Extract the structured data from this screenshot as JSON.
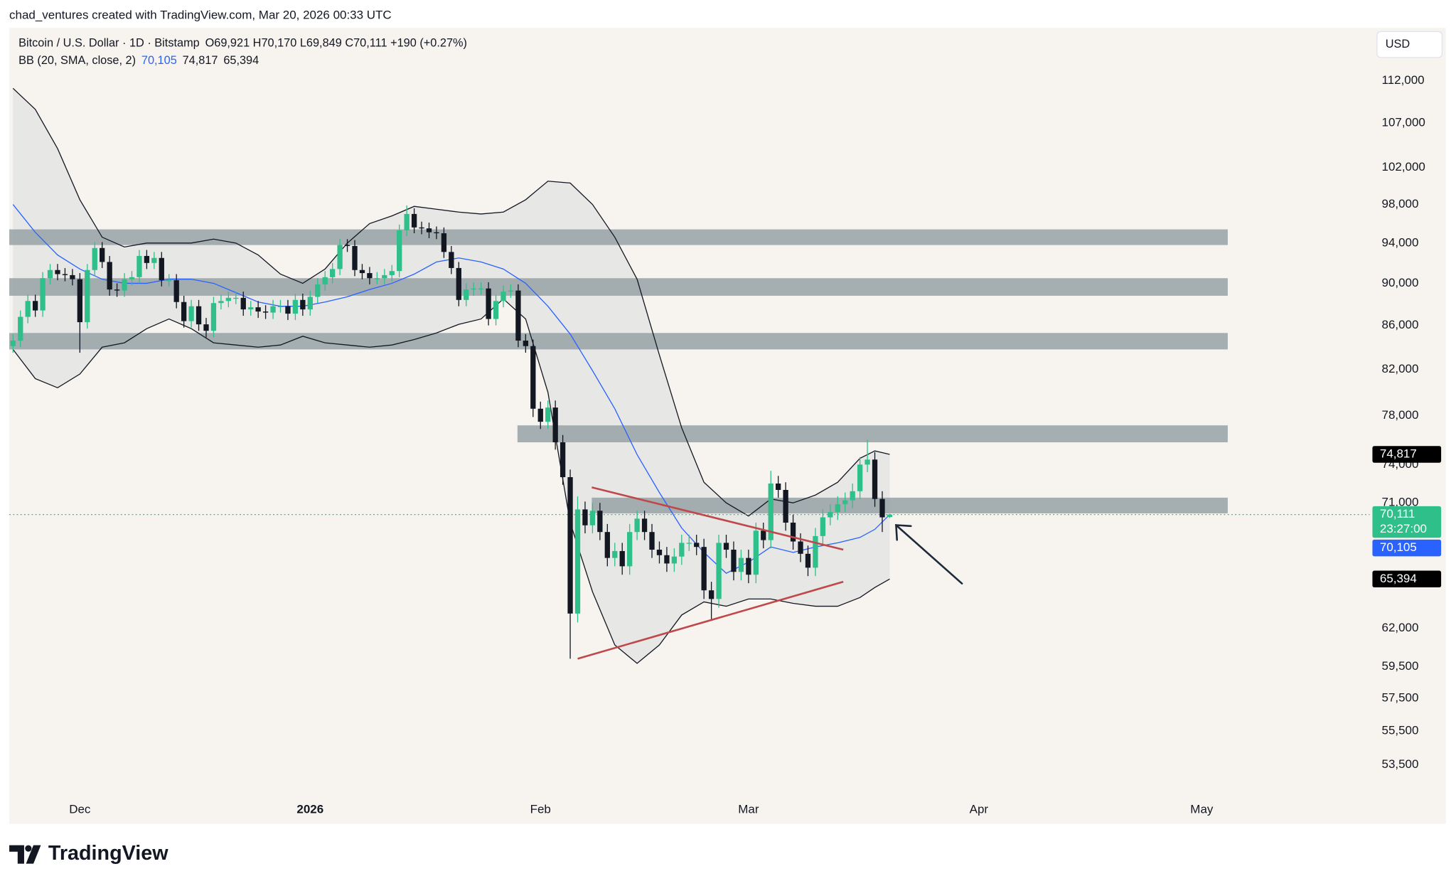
{
  "attribution": "chad_ventures created with TradingView.com, Mar 20, 2026 00:33 UTC",
  "brand": "TradingView",
  "chart_data": {
    "type": "candlestick",
    "title": "Bitcoin / U.S. Dollar · 1D · Bitstamp",
    "ohlc_legend": "O69,921 H70,170 L69,849 C70,111 +190 (+0.27%)",
    "currency": "USD",
    "up_color": "#2fbf8a",
    "down_color": "#131722",
    "x": [
      -9,
      -8,
      -7,
      -6,
      -5,
      -4,
      -3,
      -2,
      -1,
      0,
      1,
      2,
      3,
      4,
      5,
      6,
      7,
      8,
      9,
      10,
      11,
      12,
      13,
      14,
      15,
      16,
      17,
      18,
      19,
      20,
      21,
      22,
      23,
      24,
      25,
      26,
      27,
      28,
      29,
      30,
      31,
      32,
      33,
      34,
      35,
      36,
      37,
      38,
      39,
      40,
      41,
      42,
      43,
      44,
      45,
      46,
      47,
      48,
      49,
      50,
      51,
      52,
      53,
      54,
      55,
      56,
      57,
      58,
      59,
      60,
      61,
      62,
      63,
      64,
      65,
      66,
      67,
      68,
      69,
      70,
      71,
      72,
      73,
      74,
      75,
      76,
      77,
      78,
      79,
      80,
      81,
      82,
      83,
      84,
      85,
      86,
      87,
      88,
      89,
      90,
      91,
      92,
      93,
      94,
      95,
      96,
      97,
      98,
      99,
      100,
      101,
      102,
      103,
      104,
      105,
      106,
      107,
      108,
      109
    ],
    "open": [
      84100,
      84600,
      86800,
      88300,
      87400,
      90500,
      91300,
      90900,
      90800,
      90400,
      86300,
      91300,
      93500,
      92100,
      89400,
      89300,
      90400,
      90600,
      92700,
      92000,
      92500,
      90300,
      90300,
      88200,
      86400,
      87800,
      86100,
      85500,
      88100,
      88300,
      88600,
      88600,
      87500,
      87700,
      87300,
      87200,
      87800,
      87800,
      87100,
      88400,
      87500,
      88700,
      89900,
      90600,
      91400,
      93800,
      93700,
      91300,
      91000,
      90500,
      90500,
      90800,
      91200,
      95300,
      97000,
      95600,
      95500,
      95100,
      95000,
      93100,
      91500,
      88400,
      89400,
      89500,
      89500,
      86600,
      88300,
      89200,
      89300,
      84600,
      84100,
      78600,
      77500,
      78700,
      75800,
      73000,
      63000,
      70500,
      69300,
      70400,
      68800,
      66900,
      67400,
      66300,
      68800,
      69800,
      68800,
      67500,
      67100,
      66500,
      67000,
      68000,
      68000,
      67700,
      64600,
      64000,
      68000,
      67500,
      65900,
      66900,
      65700,
      68900,
      68200,
      72500,
      72000,
      69500,
      68100,
      67200,
      66200,
      68500,
      69900,
      70300,
      70900,
      71200,
      71900,
      74000,
      74400,
      71300,
      69921
    ],
    "high": [
      85200,
      87400,
      88900,
      88900,
      91100,
      91900,
      91900,
      91500,
      91400,
      91000,
      91900,
      94100,
      94100,
      92700,
      90000,
      91000,
      91200,
      93300,
      93300,
      93100,
      93100,
      90900,
      90900,
      88800,
      88400,
      88400,
      86700,
      88700,
      88900,
      89200,
      89200,
      89200,
      88300,
      88300,
      87900,
      88400,
      88400,
      88400,
      89000,
      89000,
      89300,
      90500,
      91200,
      92000,
      94400,
      94400,
      94300,
      91900,
      91600,
      91100,
      91400,
      91800,
      95900,
      97900,
      97600,
      96200,
      96100,
      95700,
      95600,
      93700,
      92100,
      90000,
      90100,
      90100,
      90100,
      88900,
      89800,
      89900,
      89900,
      85200,
      84700,
      79200,
      79300,
      79300,
      76400,
      73600,
      71500,
      71100,
      71000,
      71000,
      69400,
      68000,
      68000,
      69400,
      70400,
      70400,
      69400,
      68100,
      67700,
      67600,
      68600,
      68600,
      68600,
      68300,
      65200,
      68600,
      68600,
      68100,
      67500,
      67500,
      69500,
      69500,
      73500,
      73100,
      72600,
      70100,
      68700,
      67800,
      69100,
      70500,
      70900,
      71500,
      71800,
      72500,
      74600,
      76000,
      75000,
      71900,
      70170
    ],
    "low": [
      83500,
      84000,
      86200,
      86800,
      86800,
      89900,
      90300,
      90200,
      89800,
      83500,
      85700,
      90700,
      91500,
      88800,
      88700,
      88700,
      89800,
      90000,
      91400,
      91400,
      89700,
      89700,
      87600,
      85800,
      85800,
      85500,
      84900,
      84900,
      87500,
      87700,
      88000,
      86900,
      86900,
      86700,
      86600,
      86600,
      87200,
      86500,
      86500,
      86900,
      86900,
      88100,
      89300,
      90000,
      90800,
      93100,
      90700,
      90400,
      89900,
      89900,
      89900,
      90200,
      90600,
      94700,
      95000,
      94900,
      94500,
      94400,
      92500,
      90900,
      87800,
      87800,
      88800,
      88900,
      86000,
      86000,
      87700,
      88600,
      84000,
      83500,
      77900,
      76900,
      76900,
      75200,
      72400,
      60000,
      62400,
      68700,
      68700,
      68200,
      66300,
      66300,
      65700,
      65700,
      68200,
      68200,
      66900,
      66500,
      65900,
      65900,
      66400,
      67400,
      67100,
      64000,
      62500,
      63400,
      66900,
      65300,
      65300,
      65100,
      65100,
      67600,
      67600,
      71400,
      68900,
      67500,
      66600,
      65600,
      65600,
      67900,
      69300,
      69700,
      70300,
      70600,
      71300,
      73400,
      70700,
      68800,
      69849
    ],
    "close": [
      84600,
      86800,
      88300,
      87400,
      90500,
      91300,
      90900,
      90800,
      90400,
      86300,
      91300,
      93500,
      92100,
      89400,
      89300,
      90400,
      90600,
      92700,
      92000,
      92500,
      90300,
      90300,
      88200,
      86400,
      87800,
      86100,
      85500,
      88100,
      88300,
      88600,
      88600,
      87500,
      87700,
      87300,
      87200,
      87800,
      87800,
      87100,
      88400,
      87500,
      88700,
      89900,
      90600,
      91400,
      93800,
      93700,
      91300,
      91000,
      90500,
      90500,
      90800,
      91200,
      95300,
      97000,
      95600,
      95500,
      95100,
      95000,
      93100,
      91500,
      88400,
      89400,
      89500,
      89500,
      86600,
      88300,
      89200,
      89300,
      84600,
      84100,
      78600,
      77500,
      78700,
      75800,
      73000,
      63000,
      70500,
      69300,
      70400,
      68800,
      66900,
      67400,
      66300,
      68800,
      69800,
      68800,
      67500,
      67100,
      66500,
      67000,
      68000,
      68000,
      67700,
      64600,
      64000,
      68000,
      67500,
      65900,
      66900,
      65700,
      68900,
      68200,
      72500,
      72000,
      69500,
      68100,
      67200,
      66200,
      68500,
      69900,
      70300,
      70900,
      71200,
      71900,
      74000,
      74400,
      71300,
      69900,
      70111
    ],
    "last_price": {
      "label": "70,111",
      "countdown": "23:27:00"
    },
    "bb": {
      "label": "BB (20, SMA, close, 2)",
      "middle_label": "70,105",
      "upper_label": "74,817",
      "lower_label": "65,394",
      "middle_color": "#2962ff",
      "band_color": "#131722",
      "x": [
        -9,
        -6,
        -3,
        0,
        3,
        6,
        9,
        12,
        15,
        18,
        21,
        24,
        27,
        30,
        33,
        36,
        39,
        42,
        45,
        48,
        51,
        54,
        57,
        60,
        63,
        66,
        69,
        72,
        75,
        78,
        81,
        84,
        87,
        90,
        93,
        96,
        99,
        102,
        105,
        107,
        109
      ],
      "upper": [
        111100,
        108600,
        104100,
        98500,
        94600,
        93600,
        94000,
        94000,
        94000,
        94400,
        94000,
        92800,
        90900,
        90000,
        91400,
        94000,
        96000,
        96800,
        97800,
        97500,
        97200,
        97000,
        97200,
        98500,
        100500,
        100300,
        98000,
        94600,
        90400,
        83300,
        77000,
        72600,
        71000,
        70000,
        71300,
        71000,
        71600,
        72600,
        74500,
        75100,
        74817
      ],
      "middle": [
        98000,
        95100,
        92800,
        91400,
        90400,
        90000,
        90000,
        90400,
        90400,
        90000,
        89100,
        88200,
        87800,
        87800,
        88200,
        88700,
        89400,
        90000,
        90900,
        92100,
        92500,
        92100,
        91400,
        90000,
        87800,
        85200,
        81900,
        78600,
        74800,
        71800,
        69100,
        67300,
        65800,
        66600,
        67700,
        67300,
        67700,
        68000,
        68400,
        69000,
        70105
      ],
      "lower": [
        83800,
        81200,
        80400,
        81600,
        84000,
        84400,
        85700,
        86600,
        85700,
        84400,
        84200,
        84000,
        84200,
        85000,
        84400,
        84200,
        84000,
        84200,
        84700,
        85300,
        86100,
        86600,
        88500,
        86600,
        80000,
        69500,
        64500,
        60900,
        59700,
        60900,
        62900,
        63800,
        63500,
        64000,
        64000,
        63700,
        63500,
        63500,
        64100,
        64800,
        65394
      ]
    },
    "zones": [
      {
        "low": 93800,
        "high": 95400,
        "from": -9.5,
        "to": 154.5
      },
      {
        "low": 88800,
        "high": 90500,
        "from": -9.5,
        "to": 154.5
      },
      {
        "low": 83800,
        "high": 85300,
        "from": -9.5,
        "to": 154.5
      },
      {
        "low": 75800,
        "high": 77200,
        "from": 58.9,
        "to": 154.5
      },
      {
        "low": 70200,
        "high": 71400,
        "from": 68.9,
        "to": 154.5
      }
    ],
    "zone_color": "#9ba6aa",
    "trendlines": [
      {
        "x": [
          68.9,
          102.75
        ],
        "y": [
          72200,
          67500
        ],
        "color": "#c0474a"
      },
      {
        "x": [
          67,
          102.75
        ],
        "y": [
          60000,
          65200
        ],
        "color": "#c0474a"
      }
    ],
    "xlim": [
      -9.5,
      173.6
    ],
    "xticks": [
      {
        "value": 0,
        "label": "Dec"
      },
      {
        "value": 31,
        "label": "2026"
      },
      {
        "value": 62,
        "label": "Feb"
      },
      {
        "value": 90,
        "label": "Mar"
      },
      {
        "value": 121,
        "label": "Apr"
      },
      {
        "value": 151,
        "label": "May"
      }
    ],
    "ylim": [
      50200,
      118600
    ],
    "log_scale": true,
    "yticks": [
      {
        "value": 112000,
        "label": "112,000"
      },
      {
        "value": 107000,
        "label": "107,000"
      },
      {
        "value": 102000,
        "label": "102,000"
      },
      {
        "value": 98000,
        "label": "98,000"
      },
      {
        "value": 94000,
        "label": "94,000"
      },
      {
        "value": 90000,
        "label": "90,000"
      },
      {
        "value": 86000,
        "label": "86,000"
      },
      {
        "value": 82000,
        "label": "82,000"
      },
      {
        "value": 78000,
        "label": "78,000"
      },
      {
        "value": 74000,
        "label": "74,000"
      },
      {
        "value": 71000,
        "label": "71,000"
      },
      {
        "value": 62000,
        "label": "62,000"
      },
      {
        "value": 59500,
        "label": "59,500"
      },
      {
        "value": 57500,
        "label": "57,500"
      },
      {
        "value": 55500,
        "label": "55,500"
      },
      {
        "value": 53500,
        "label": "53,500"
      }
    ]
  }
}
